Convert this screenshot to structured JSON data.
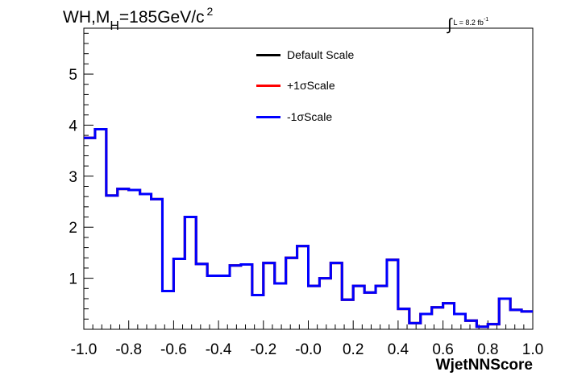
{
  "title": {
    "main": "WH,M",
    "subscript": "H",
    "rest": "=185GeV/c",
    "superscript": "2"
  },
  "luminosity": {
    "integral_symbol": "∫",
    "text": "L = 8.2 fb",
    "superscript": "-1"
  },
  "legend": [
    {
      "label": "Default Scale",
      "color": "#000000"
    },
    {
      "label": "+1σScale",
      "color": "#ff0000"
    },
    {
      "label": "-1σScale",
      "color": "#0000ff"
    }
  ],
  "chart_data": {
    "type": "line",
    "style": "step histogram",
    "xlabel": "WjetNNScore",
    "ylabel": "",
    "xlim": [
      -1.0,
      1.0
    ],
    "ylim": [
      0,
      5.9
    ],
    "x_ticks": [
      "-1.0",
      "-0.8",
      "-0.6",
      "-0.4",
      "-0.2",
      "-0.0",
      "0.2",
      "0.4",
      "0.6",
      "0.8",
      "1.0"
    ],
    "y_ticks": [
      "1",
      "2",
      "3",
      "4",
      "5"
    ],
    "bin_edges": [
      -1.0,
      -0.95,
      -0.9,
      -0.85,
      -0.8,
      -0.75,
      -0.7,
      -0.65,
      -0.6,
      -0.55,
      -0.5,
      -0.45,
      -0.4,
      -0.35,
      -0.3,
      -0.25,
      -0.2,
      -0.15,
      -0.1,
      -0.05,
      0.0,
      0.05,
      0.1,
      0.15,
      0.2,
      0.25,
      0.3,
      0.35,
      0.4,
      0.45,
      0.5,
      0.55,
      0.6,
      0.65,
      0.7,
      0.75,
      0.8,
      0.85,
      0.9,
      0.95,
      1.0
    ],
    "series": [
      {
        "name": "Default Scale",
        "color": "#000000",
        "values": [
          3.75,
          3.92,
          2.62,
          2.75,
          2.73,
          2.65,
          2.55,
          0.75,
          1.38,
          2.2,
          1.28,
          1.05,
          1.05,
          1.25,
          1.27,
          0.67,
          1.3,
          0.9,
          1.4,
          1.63,
          0.85,
          1.0,
          1.3,
          0.58,
          0.85,
          0.72,
          0.85,
          1.36,
          0.4,
          0.12,
          0.3,
          0.43,
          0.51,
          0.3,
          0.17,
          0.05,
          0.1,
          0.6,
          0.38,
          0.35
        ]
      },
      {
        "name": "+1σScale",
        "color": "#ff0000",
        "values": [
          3.75,
          3.92,
          2.62,
          2.75,
          2.73,
          2.65,
          2.55,
          0.75,
          1.38,
          2.2,
          1.28,
          1.05,
          1.05,
          1.25,
          1.27,
          0.67,
          1.3,
          0.9,
          1.4,
          1.63,
          0.85,
          1.0,
          1.3,
          0.58,
          0.85,
          0.72,
          0.85,
          1.36,
          0.4,
          0.12,
          0.3,
          0.43,
          0.51,
          0.3,
          0.17,
          0.05,
          0.1,
          0.6,
          0.38,
          0.35
        ]
      },
      {
        "name": "-1σScale",
        "color": "#0000ff",
        "values": [
          3.75,
          3.92,
          2.62,
          2.75,
          2.73,
          2.65,
          2.55,
          0.75,
          1.38,
          2.2,
          1.28,
          1.05,
          1.05,
          1.25,
          1.27,
          0.67,
          1.3,
          0.9,
          1.4,
          1.63,
          0.85,
          1.0,
          1.3,
          0.58,
          0.85,
          0.72,
          0.85,
          1.36,
          0.4,
          0.12,
          0.3,
          0.43,
          0.51,
          0.3,
          0.17,
          0.05,
          0.1,
          0.6,
          0.38,
          0.35
        ]
      }
    ]
  }
}
